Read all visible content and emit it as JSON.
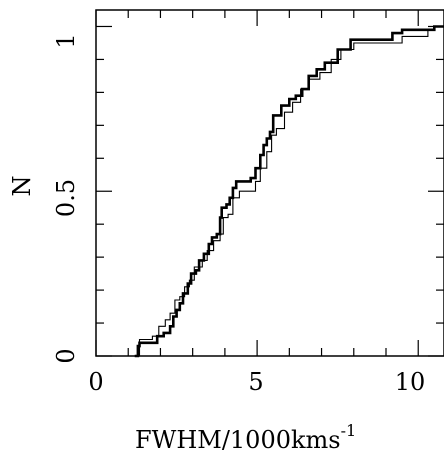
{
  "chart_data": {
    "type": "line",
    "subtype": "cumulative-step",
    "title": "",
    "xlabel": "FWHM/1000kms",
    "xlabel_superscript": "-1",
    "ylabel": "N",
    "xlim": [
      0,
      10.8
    ],
    "ylim": [
      0,
      1.05
    ],
    "x_ticks": [
      0,
      5,
      10
    ],
    "y_ticks": [
      0,
      0.5,
      1
    ],
    "x_tick_labels": [
      "0",
      "5",
      "10"
    ],
    "y_tick_labels": [
      "0",
      "0.5",
      "1"
    ],
    "grid": false,
    "legend": "none",
    "series": [
      {
        "style": "thick",
        "points": [
          [
            1.2,
            0.0
          ],
          [
            1.3,
            0.03
          ],
          [
            1.35,
            0.04
          ],
          [
            1.85,
            0.04
          ],
          [
            1.9,
            0.06
          ],
          [
            2.1,
            0.07
          ],
          [
            2.3,
            0.09
          ],
          [
            2.4,
            0.12
          ],
          [
            2.5,
            0.14
          ],
          [
            2.6,
            0.16
          ],
          [
            2.7,
            0.19
          ],
          [
            2.85,
            0.22
          ],
          [
            2.95,
            0.25
          ],
          [
            3.1,
            0.26
          ],
          [
            3.2,
            0.29
          ],
          [
            3.35,
            0.31
          ],
          [
            3.5,
            0.34
          ],
          [
            3.6,
            0.36
          ],
          [
            3.75,
            0.37
          ],
          [
            3.85,
            0.42
          ],
          [
            3.9,
            0.45
          ],
          [
            4.05,
            0.46
          ],
          [
            4.15,
            0.48
          ],
          [
            4.25,
            0.51
          ],
          [
            4.35,
            0.53
          ],
          [
            4.8,
            0.54
          ],
          [
            4.95,
            0.57
          ],
          [
            5.1,
            0.61
          ],
          [
            5.2,
            0.64
          ],
          [
            5.3,
            0.66
          ],
          [
            5.4,
            0.68
          ],
          [
            5.5,
            0.73
          ],
          [
            5.75,
            0.76
          ],
          [
            6.0,
            0.78
          ],
          [
            6.2,
            0.79
          ],
          [
            6.4,
            0.81
          ],
          [
            6.6,
            0.85
          ],
          [
            6.85,
            0.87
          ],
          [
            7.1,
            0.89
          ],
          [
            7.5,
            0.93
          ],
          [
            7.9,
            0.96
          ],
          [
            9.2,
            0.98
          ],
          [
            9.5,
            0.99
          ],
          [
            10.5,
            1.0
          ]
        ]
      },
      {
        "style": "thin",
        "points": [
          [
            1.25,
            0.0
          ],
          [
            1.35,
            0.05
          ],
          [
            1.75,
            0.06
          ],
          [
            1.95,
            0.09
          ],
          [
            2.15,
            0.11
          ],
          [
            2.3,
            0.13
          ],
          [
            2.45,
            0.17
          ],
          [
            2.6,
            0.18
          ],
          [
            2.75,
            0.21
          ],
          [
            2.9,
            0.23
          ],
          [
            3.05,
            0.27
          ],
          [
            3.3,
            0.29
          ],
          [
            3.45,
            0.32
          ],
          [
            3.65,
            0.35
          ],
          [
            3.85,
            0.37
          ],
          [
            3.95,
            0.42
          ],
          [
            4.1,
            0.43
          ],
          [
            4.25,
            0.48
          ],
          [
            4.45,
            0.5
          ],
          [
            4.95,
            0.53
          ],
          [
            5.1,
            0.57
          ],
          [
            5.3,
            0.62
          ],
          [
            5.45,
            0.67
          ],
          [
            5.6,
            0.69
          ],
          [
            5.85,
            0.74
          ],
          [
            6.1,
            0.77
          ],
          [
            6.35,
            0.81
          ],
          [
            6.6,
            0.84
          ],
          [
            6.95,
            0.86
          ],
          [
            7.3,
            0.9
          ],
          [
            7.6,
            0.93
          ],
          [
            8.0,
            0.95
          ],
          [
            9.5,
            0.97
          ],
          [
            10.3,
            0.99
          ],
          [
            10.5,
            1.0
          ]
        ]
      }
    ]
  }
}
